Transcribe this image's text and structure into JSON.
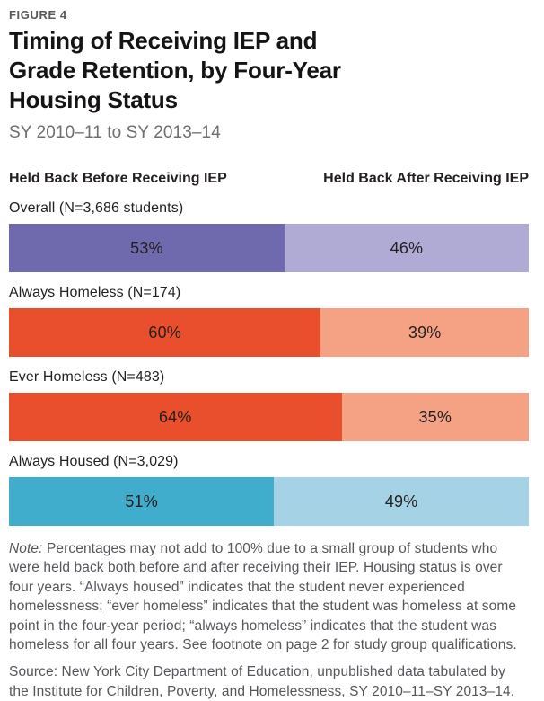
{
  "figure_label": "FIGURE 4",
  "title": "Timing of Receiving IEP and Grade Retention, by Four-Year Housing Status",
  "title_lines": [
    "Timing of Receiving IEP and",
    "Grade Retention, by Four-Year",
    "Housing Status"
  ],
  "subtitle": "SY 2010–11 to SY 2013–14",
  "legend": {
    "before_label": "Held Back Before Receiving IEP",
    "after_label": "Held Back After Receiving IEP"
  },
  "chart_data": {
    "type": "bar",
    "orientation": "horizontal-stacked",
    "title": "Timing of Receiving IEP and Grade Retention, by Four-Year Housing Status",
    "subtitle": "SY 2010–11 to SY 2013–14",
    "categories": [
      "Overall (N=3,686 students)",
      "Always Homeless (N=174)",
      "Ever Homeless (N=483)",
      "Always Housed (N=3,029)"
    ],
    "series": [
      {
        "name": "Held Back Before Receiving IEP",
        "values": [
          53,
          60,
          64,
          51
        ]
      },
      {
        "name": "Held Back After Receiving IEP",
        "values": [
          46,
          39,
          35,
          49
        ]
      }
    ],
    "value_unit": "%",
    "xlim": [
      0,
      100
    ],
    "legend_position": "top",
    "grid": false
  },
  "rows": [
    {
      "label": "Overall (N=3,686 students)",
      "before_pct": "53%",
      "after_pct": "46%",
      "before_value": 53,
      "after_value": 46,
      "colors": {
        "before": "#6e6aad",
        "after": "#b0abd5"
      }
    },
    {
      "label": "Always Homeless (N=174)",
      "before_pct": "60%",
      "after_pct": "39%",
      "before_value": 60,
      "after_value": 39,
      "colors": {
        "before": "#e94f2c",
        "after": "#f5a284"
      }
    },
    {
      "label": "Ever Homeless (N=483)",
      "before_pct": "64%",
      "after_pct": "35%",
      "before_value": 64,
      "after_value": 35,
      "colors": {
        "before": "#e94f2c",
        "after": "#f5a284"
      }
    },
    {
      "label": "Always Housed (N=3,029)",
      "before_pct": "51%",
      "after_pct": "49%",
      "before_value": 51,
      "after_value": 49,
      "colors": {
        "before": "#3fadcb",
        "after": "#a5d3e5"
      }
    }
  ],
  "note": {
    "prefix": "Note:",
    "text": " Percentages may not add to 100% due to a small group of students who were held back both before and after receiving their IEP. Housing status is over four years. “Always housed” indicates that the student never experienced homelessness; “ever homeless” indicates that the student was homeless at some point in the four-year period; “always homeless” indicates that the student was homeless for all four years. See footnote on page 2 for study group qualifications."
  },
  "source": "Source: New York City Department of Education, unpublished data tabulated by the Institute for Children, Poverty, and Homelessness, SY 2010–11–SY 2013–14."
}
